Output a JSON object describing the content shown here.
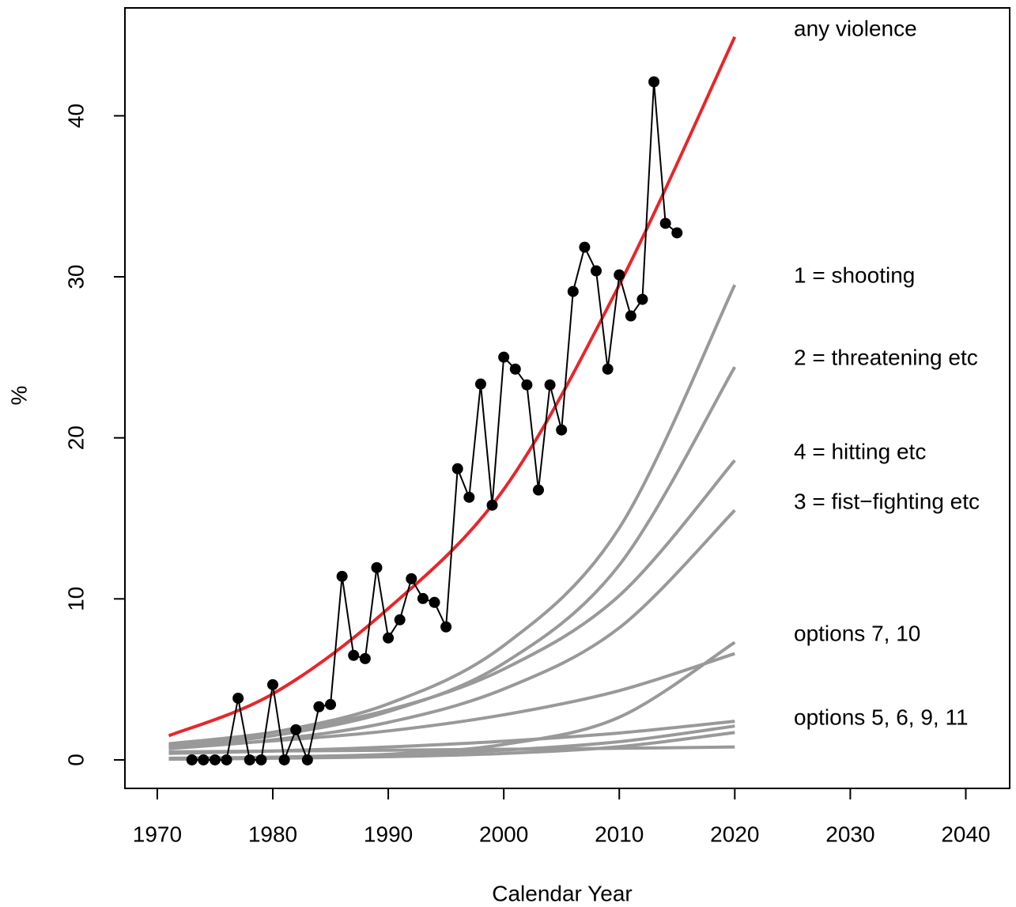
{
  "chart_data": {
    "type": "line",
    "xlabel": "Calendar Year",
    "ylabel": "%",
    "xlim": [
      1967.2,
      2043.8
    ],
    "ylim": [
      -1.77,
      46.7
    ],
    "xticks": [
      1970,
      1980,
      1990,
      2000,
      2010,
      2020,
      2030,
      2040
    ],
    "yticks": [
      0,
      10,
      20,
      30,
      40
    ],
    "annotations": [
      "any violence",
      "1 = shooting",
      "2 = threatening etc",
      "4 = hitting etc",
      "3 = fist−fighting etc",
      "options 7, 10",
      "options 5, 6, 9, 11"
    ],
    "series": [
      {
        "color": "#000000",
        "markers": true,
        "x": [
          1973,
          1974,
          1975,
          1976,
          1977,
          1978,
          1979,
          1980,
          1981,
          1982,
          1983,
          1984,
          1985,
          1986,
          1987,
          1988,
          1989,
          1990,
          1991,
          1992,
          1993,
          1994,
          1995,
          1996,
          1997,
          1998,
          1999,
          2000,
          2001,
          2002,
          2003,
          2004,
          2005,
          2006,
          2007,
          2008,
          2009,
          2010,
          2011,
          2012,
          2013,
          2014,
          2015
        ],
        "values": [
          0,
          0,
          0,
          0,
          3.83,
          0,
          0,
          4.67,
          0,
          1.87,
          0,
          3.3,
          3.44,
          11.4,
          6.49,
          6.29,
          11.94,
          7.57,
          8.7,
          11.25,
          10.02,
          9.78,
          8.26,
          18.08,
          16.31,
          23.34,
          15.82,
          25.01,
          24.27,
          23.29,
          16.76,
          23.29,
          20.49,
          29.09,
          31.84,
          30.37,
          24.27,
          30.12,
          27.57,
          28.6,
          42.11,
          33.32,
          32.73
        ]
      },
      {
        "color": "#e8262a",
        "x": [
          1971,
          1980,
          1990,
          2000,
          2010,
          2020
        ],
        "values": [
          1.5,
          4.1,
          9.4,
          16.8,
          29.5,
          44.9
        ]
      },
      {
        "color": "#999999",
        "x": [
          1971,
          1980,
          1990,
          2000,
          2010,
          2020
        ],
        "values": [
          0.9,
          1.71,
          3.48,
          7.1,
          14.4,
          29.5
        ]
      },
      {
        "color": "#999999",
        "x": [
          1971,
          1980,
          1990,
          2000,
          2010,
          2020
        ],
        "values": [
          0.8,
          1.5,
          3.0,
          6.0,
          12.1,
          24.4
        ]
      },
      {
        "color": "#999999",
        "x": [
          1971,
          1980,
          1990,
          2000,
          2010,
          2020
        ],
        "values": [
          1.0,
          1.71,
          3.1,
          5.64,
          10.2,
          18.6
        ]
      },
      {
        "color": "#999999",
        "x": [
          1971,
          1980,
          1990,
          2000,
          2010,
          2020
        ],
        "values": [
          0.7,
          1.24,
          2.33,
          4.4,
          8.2,
          15.5
        ]
      },
      {
        "color": "#999999",
        "x": [
          1971,
          1980,
          1990,
          2000,
          2010,
          2020
        ],
        "values": [
          0.8,
          1.18,
          1.8,
          2.8,
          4.3,
          6.6
        ]
      },
      {
        "color": "#999999",
        "x": [
          1971,
          1980,
          1990,
          2000,
          2010,
          2020
        ],
        "values": [
          0.05,
          0.125,
          0.35,
          0.96,
          2.65,
          7.3
        ]
      },
      {
        "color": "#999999",
        "x": [
          1971,
          1980,
          1990,
          2000,
          2010,
          2020
        ],
        "values": [
          0.4,
          0.55,
          0.8,
          1.16,
          1.67,
          2.4
        ]
      },
      {
        "color": "#999999",
        "x": [
          1971,
          1980,
          1990,
          2000,
          2010,
          2020
        ],
        "values": [
          0.1,
          0.17,
          0.33,
          0.6,
          1.13,
          2.1
        ]
      },
      {
        "color": "#999999",
        "x": [
          1971,
          1980,
          1990,
          2000,
          2010,
          2020
        ],
        "values": [
          0.05,
          0.1,
          0.2,
          0.4,
          0.82,
          1.7
        ]
      },
      {
        "color": "#999999",
        "x": [
          1971,
          1980,
          1990,
          2000,
          2010,
          2020
        ],
        "values": [
          0.5,
          0.55,
          0.6,
          0.66,
          0.72,
          0.8
        ]
      }
    ]
  }
}
